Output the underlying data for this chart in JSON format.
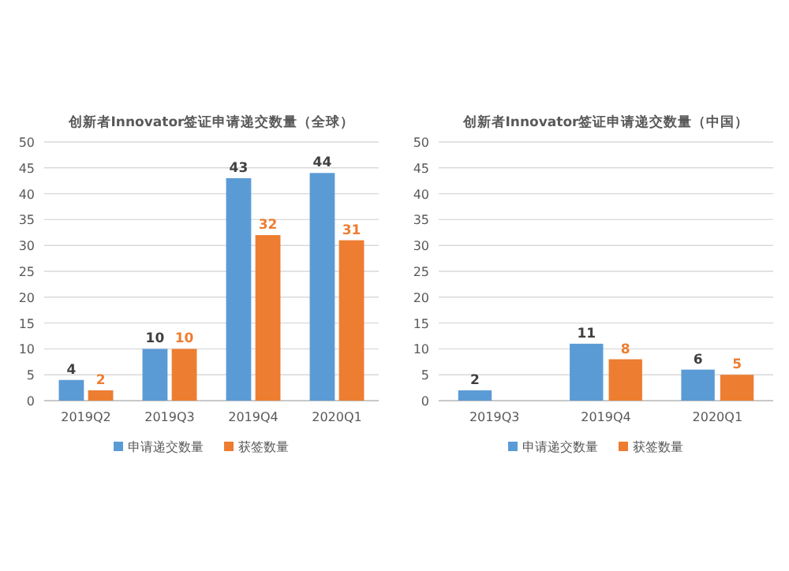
{
  "chart_data": [
    {
      "type": "bar",
      "title": "创新者Innovator签证申请递交数量（全球）",
      "categories": [
        "2019Q2",
        "2019Q3",
        "2019Q4",
        "2020Q1"
      ],
      "series": [
        {
          "name": "申请递交数量",
          "color": "#5b9bd5",
          "values": [
            4,
            10,
            43,
            44
          ]
        },
        {
          "name": "获签数量",
          "color": "#ed7d31",
          "values": [
            2,
            10,
            32,
            31
          ]
        }
      ],
      "ylim": [
        0,
        50
      ],
      "yticks": [
        0,
        5,
        10,
        15,
        20,
        25,
        30,
        35,
        40,
        45,
        50
      ],
      "grid": "y",
      "legend": "bottom",
      "data_labels": true
    },
    {
      "type": "bar",
      "title": "创新者Innovator签证申请递交数量（中国）",
      "categories": [
        "2019Q3",
        "2019Q4",
        "2020Q1"
      ],
      "series": [
        {
          "name": "申请递交数量",
          "color": "#5b9bd5",
          "values": [
            2,
            11,
            6
          ]
        },
        {
          "name": "获签数量",
          "color": "#ed7d31",
          "values": [
            null,
            8,
            5
          ]
        }
      ],
      "ylim": [
        0,
        50
      ],
      "yticks": [
        0,
        5,
        10,
        15,
        20,
        25,
        30,
        35,
        40,
        45,
        50
      ],
      "grid": "y",
      "legend": "bottom",
      "data_labels": true
    }
  ]
}
